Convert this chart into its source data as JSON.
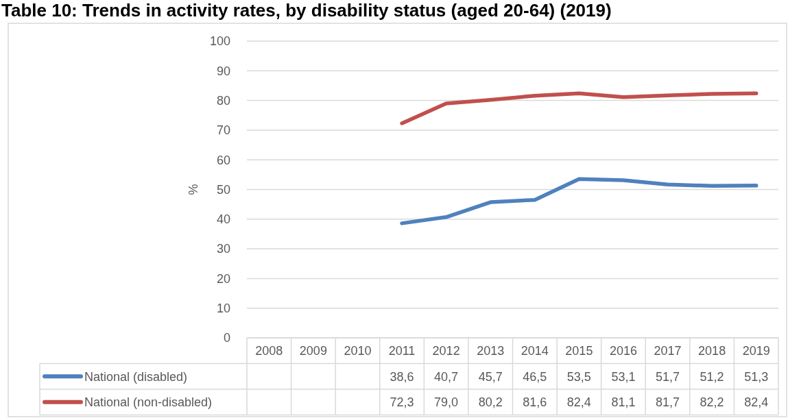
{
  "chart_data": {
    "type": "line",
    "title": "Table 10: Trends in activity rates, by disability status (aged 20-64) (2019)",
    "ylabel": "%",
    "categories": [
      "2008",
      "2009",
      "2010",
      "2011",
      "2012",
      "2013",
      "2014",
      "2015",
      "2016",
      "2017",
      "2018",
      "2019"
    ],
    "ylim": [
      0,
      100
    ],
    "yticks": [
      0,
      10,
      20,
      30,
      40,
      50,
      60,
      70,
      80,
      90,
      100
    ],
    "grid": "y",
    "legend": "bottom",
    "line_style": "solid",
    "series": [
      {
        "name": "National (disabled)",
        "color": "#4f81bd",
        "values": [
          null,
          null,
          null,
          38.6,
          40.7,
          45.7,
          46.5,
          53.5,
          53.1,
          51.7,
          51.2,
          51.3
        ],
        "value_labels": [
          null,
          null,
          null,
          "38,6",
          "40,7",
          "45,7",
          "46,5",
          "53,5",
          "53,1",
          "51,7",
          "51,2",
          "51,3"
        ]
      },
      {
        "name": "National (non-disabled)",
        "color": "#c0504d",
        "values": [
          null,
          null,
          null,
          72.3,
          79.0,
          80.2,
          81.6,
          82.4,
          81.1,
          81.7,
          82.2,
          82.4
        ],
        "value_labels": [
          null,
          null,
          null,
          "72,3",
          "79,0",
          "80,2",
          "81,6",
          "82,4",
          "81,1",
          "81,7",
          "82,2",
          "82,4"
        ]
      }
    ]
  }
}
